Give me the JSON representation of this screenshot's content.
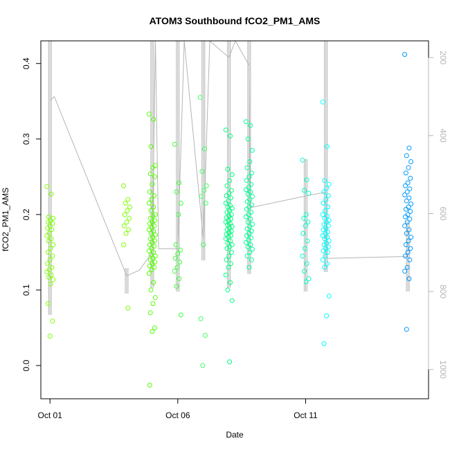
{
  "chart_data": {
    "type": "scatter",
    "title": "ATOM3 Southbound fCO2_PM1_AMS",
    "xlabel": "Date",
    "ylabel": "fCO2_PM1_AMS",
    "x_range": [
      "2017-09-30T15:25",
      "2017-10-15T19:25"
    ],
    "ylim": [
      -0.044,
      0.43
    ],
    "x_ticks": [
      {
        "date": "2017-10-01",
        "label": "Oct 01"
      },
      {
        "date": "2017-10-06",
        "label": "Oct 06"
      },
      {
        "date": "2017-10-11",
        "label": "Oct 11"
      }
    ],
    "y_ticks": [
      0.0,
      0.1,
      0.2,
      0.3,
      0.4
    ],
    "right_axis": {
      "quantity": "pressure",
      "color": "#b4b4b4",
      "range_top_to_bottom": [
        157,
        1075
      ],
      "ticks": [
        200,
        400,
        600,
        800,
        1000
      ]
    },
    "colormap": "green (early) to blue (late)",
    "grid": false,
    "legend": false,
    "point_colors": [
      "#80ff00",
      "#00ff80",
      "#00ffff",
      "#0080ff"
    ],
    "series": [
      {
        "time": "2017-10-01T00:00",
        "color": "#80ff00",
        "values": [
          0.237,
          0.227,
          0.197,
          0.195,
          0.192,
          0.19,
          0.188,
          0.185,
          0.182,
          0.18,
          0.175,
          0.172,
          0.168,
          0.165,
          0.16,
          0.155,
          0.15,
          0.145,
          0.14,
          0.135,
          0.13,
          0.127,
          0.124,
          0.12,
          0.117,
          0.114,
          0.108,
          0.082,
          0.059,
          0.039
        ]
      },
      {
        "time": "2017-10-04T00:00",
        "color": "#80ff00",
        "values": [
          0.238,
          0.22,
          0.215,
          0.21,
          0.205,
          0.2,
          0.195,
          0.19,
          0.185,
          0.18,
          0.175,
          0.16,
          0.076
        ]
      },
      {
        "time": "2017-10-05T00:00",
        "color": "#55ff00",
        "values": [
          0.333,
          0.326,
          0.29,
          0.265,
          0.262,
          0.254,
          0.25,
          0.24,
          0.23,
          0.225,
          0.22,
          0.215,
          0.21,
          0.205,
          0.2,
          0.198,
          0.195,
          0.192,
          0.19,
          0.188,
          0.185,
          0.183,
          0.18,
          0.178,
          0.175,
          0.173,
          0.17,
          0.168,
          0.165,
          0.163,
          0.16,
          0.158,
          0.155,
          0.152,
          0.15,
          0.147,
          0.145,
          0.142,
          0.14,
          0.137,
          0.135,
          0.132,
          0.13,
          0.127,
          0.122,
          0.11,
          0.1,
          0.09,
          0.082,
          0.07,
          0.05,
          0.045,
          -0.026
        ]
      },
      {
        "time": "2017-10-06T00:00",
        "color": "#40ff40",
        "values": [
          0.293,
          0.242,
          0.23,
          0.215,
          0.2,
          0.16,
          0.153,
          0.148,
          0.142,
          0.137,
          0.13,
          0.125,
          0.115,
          0.105,
          0.067
        ]
      },
      {
        "time": "2017-10-07T00:00",
        "color": "#40ff60",
        "values": [
          0.355,
          0.287,
          0.257,
          0.238,
          0.232,
          0.224,
          0.215,
          0.16,
          0.062,
          0.04,
          0.0
        ]
      },
      {
        "time": "2017-10-08T00:00",
        "color": "#00ff80",
        "values": [
          0.312,
          0.304,
          0.26,
          0.253,
          0.245,
          0.238,
          0.232,
          0.228,
          0.225,
          0.222,
          0.218,
          0.215,
          0.212,
          0.21,
          0.208,
          0.205,
          0.203,
          0.2,
          0.198,
          0.196,
          0.194,
          0.192,
          0.19,
          0.188,
          0.186,
          0.184,
          0.182,
          0.18,
          0.178,
          0.176,
          0.174,
          0.172,
          0.17,
          0.168,
          0.165,
          0.162,
          0.16,
          0.157,
          0.155,
          0.15,
          0.145,
          0.14,
          0.135,
          0.13,
          0.12,
          0.11,
          0.1,
          0.086,
          0.005
        ]
      },
      {
        "time": "2017-10-08T19:00",
        "color": "#00ff99",
        "values": [
          0.323,
          0.318,
          0.3,
          0.285,
          0.27,
          0.262,
          0.255,
          0.25,
          0.245,
          0.24,
          0.236,
          0.233,
          0.23,
          0.227,
          0.224,
          0.22,
          0.217,
          0.213,
          0.21,
          0.207,
          0.203,
          0.2,
          0.197,
          0.194,
          0.19,
          0.187,
          0.184,
          0.181,
          0.178,
          0.175,
          0.172,
          0.169,
          0.166,
          0.163,
          0.16,
          0.157,
          0.154,
          0.15,
          0.145,
          0.14,
          0.13
        ]
      },
      {
        "time": "2017-10-11T00:00",
        "color": "#00ffcc",
        "values": [
          0.272,
          0.246,
          0.232,
          0.228,
          0.2,
          0.195,
          0.19,
          0.185,
          0.175,
          0.165,
          0.155,
          0.145,
          0.135,
          0.125,
          0.115,
          0.111
        ]
      },
      {
        "time": "2017-10-11T19:00",
        "color": "#00ffff",
        "values": [
          0.349,
          0.29,
          0.245,
          0.24,
          0.235,
          0.23,
          0.225,
          0.22,
          0.215,
          0.21,
          0.205,
          0.2,
          0.198,
          0.195,
          0.192,
          0.19,
          0.187,
          0.185,
          0.182,
          0.18,
          0.177,
          0.175,
          0.172,
          0.17,
          0.168,
          0.165,
          0.162,
          0.16,
          0.157,
          0.155,
          0.152,
          0.15,
          0.145,
          0.14,
          0.135,
          0.13,
          0.092,
          0.066,
          0.029
        ]
      },
      {
        "time": "2017-10-15T00:00",
        "color": "#0099ff",
        "values": [
          0.412,
          0.288,
          0.278,
          0.27,
          0.262,
          0.255,
          0.248,
          0.242,
          0.238,
          0.234,
          0.23,
          0.226,
          0.222,
          0.218,
          0.214,
          0.21,
          0.207,
          0.204,
          0.2,
          0.197,
          0.194,
          0.19,
          0.185,
          0.18,
          0.175,
          0.17,
          0.165,
          0.16,
          0.155,
          0.15,
          0.145,
          0.14,
          0.13,
          0.125,
          0.115,
          0.048
        ]
      }
    ],
    "pressure_trace": [
      {
        "time": "2017-10-01T00:00",
        "min": 157,
        "max": 860
      },
      {
        "time": "2017-10-04T00:00",
        "min": 740,
        "max": 805
      },
      {
        "time": "2017-10-05T00:00",
        "min": 157,
        "max": 790
      },
      {
        "time": "2017-10-06T00:00",
        "min": 157,
        "max": 800
      },
      {
        "time": "2017-10-07T00:00",
        "min": 157,
        "max": 720
      },
      {
        "time": "2017-10-08T00:00",
        "min": 157,
        "max": 790
      },
      {
        "time": "2017-10-08T19:00",
        "min": 157,
        "max": 755
      },
      {
        "time": "2017-10-11T00:00",
        "min": 460,
        "max": 800
      },
      {
        "time": "2017-10-11T19:00",
        "min": 157,
        "max": 750
      },
      {
        "time": "2017-10-15T00:00",
        "min": 620,
        "max": 800
      }
    ],
    "pressure_path": [
      {
        "time": "2017-10-01T00:00",
        "p": 310
      },
      {
        "time": "2017-10-01T04:00",
        "p": 300
      },
      {
        "time": "2017-10-04T00:00",
        "p": 760
      },
      {
        "time": "2017-10-04T12:00",
        "p": 745
      },
      {
        "time": "2017-10-05T00:00",
        "p": 700
      },
      {
        "time": "2017-10-05T03:00",
        "p": 157
      },
      {
        "time": "2017-10-05T06:00",
        "p": 690
      },
      {
        "time": "2017-10-06T00:00",
        "p": 690
      },
      {
        "time": "2017-10-06T06:00",
        "p": 157
      },
      {
        "time": "2017-10-07T00:00",
        "p": 665
      },
      {
        "time": "2017-10-07T06:00",
        "p": 157
      },
      {
        "time": "2017-10-08T00:00",
        "p": 200
      },
      {
        "time": "2017-10-08T06:00",
        "p": 157
      },
      {
        "time": "2017-10-08T19:00",
        "p": 220
      },
      {
        "time": "2017-10-08T20:00",
        "p": 585
      },
      {
        "time": "2017-10-11T00:00",
        "p": 555
      },
      {
        "time": "2017-10-11T19:00",
        "p": 545
      },
      {
        "time": "2017-10-11T20:00",
        "p": 715
      },
      {
        "time": "2017-10-15T00:00",
        "p": 710
      }
    ]
  }
}
